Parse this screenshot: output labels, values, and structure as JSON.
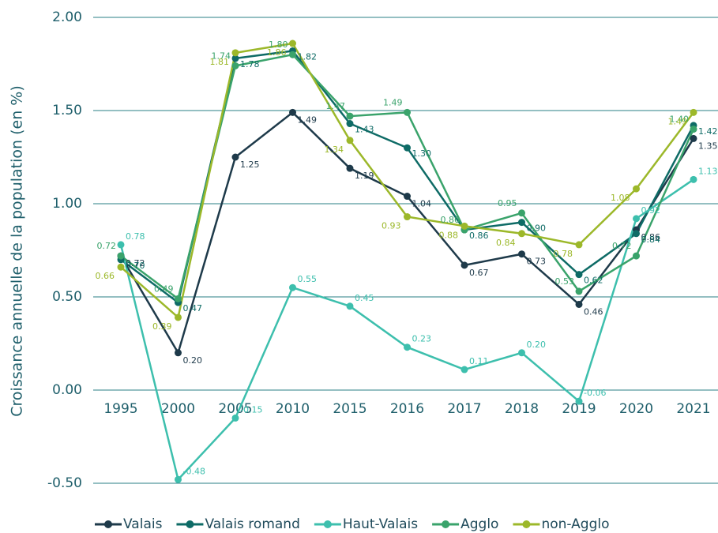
{
  "chart_data": {
    "type": "line",
    "y_label": "Croissance annuelle de la population (en %)",
    "categories": [
      "1995",
      "2000",
      "2005",
      "2010",
      "2015",
      "2016",
      "2017",
      "2018",
      "2019",
      "2020",
      "2021"
    ],
    "ylim": [
      -0.5,
      2.0
    ],
    "yticks": [
      {
        "value": 2.0,
        "label": "2.00"
      },
      {
        "value": 1.5,
        "label": "1.50"
      },
      {
        "value": 1.0,
        "label": "1.00"
      },
      {
        "value": 0.5,
        "label": "0.50"
      },
      {
        "value": 0.0,
        "label": "0.00"
      },
      {
        "value": -0.5,
        "label": "-0.50"
      }
    ],
    "grid": true,
    "legend": "bottom",
    "series": [
      {
        "name": "Valais",
        "color": "#1e3a4a",
        "values": [
          0.72,
          0.2,
          1.25,
          1.49,
          1.19,
          1.04,
          0.67,
          0.73,
          0.46,
          0.86,
          1.35
        ],
        "value_labels": [
          "0.72",
          "0.20",
          "1.25",
          "1.49",
          "1.19",
          "1.04",
          "0.67",
          "0.73",
          "0.46",
          "0.86",
          "1.35"
        ]
      },
      {
        "name": "Valais romand",
        "color": "#0e6b66",
        "values": [
          0.7,
          0.47,
          1.78,
          1.82,
          1.43,
          1.3,
          0.86,
          0.9,
          0.62,
          0.84,
          1.42
        ],
        "value_labels": [
          "0.70",
          "0.47",
          "1.78",
          "1.82",
          "1.43",
          "1.30",
          "0.86",
          "0.90",
          "0.62",
          "0.84",
          "1.42"
        ]
      },
      {
        "name": "Haut-Valais",
        "color": "#3dbfad",
        "values": [
          0.78,
          -0.48,
          -0.15,
          0.55,
          0.45,
          0.23,
          0.11,
          0.2,
          -0.06,
          0.92,
          1.13
        ],
        "value_labels": [
          "0.78",
          "-0.48",
          "-0.15",
          "0.55",
          "0.45",
          "0.23",
          "0.11",
          "0.20",
          "-0.06",
          "0.92",
          "1.13"
        ]
      },
      {
        "name": "Agglo",
        "color": "#3aa36b",
        "values": [
          0.72,
          0.49,
          1.74,
          1.8,
          1.47,
          1.49,
          0.86,
          0.95,
          0.53,
          0.72,
          1.4
        ],
        "value_labels": [
          "0.72",
          "0.49",
          "1.74",
          "1.80",
          "1.47",
          "1.49",
          "0.86",
          "0.95",
          "0.53",
          "0.72",
          "1.40"
        ]
      },
      {
        "name": "non-Agglo",
        "color": "#9cb82a",
        "values": [
          0.66,
          0.39,
          1.81,
          1.86,
          1.34,
          0.93,
          0.88,
          0.84,
          0.78,
          1.08,
          1.49
        ],
        "value_labels": [
          "0.66",
          "0.39",
          "1.81",
          "1.86",
          "1.34",
          "0.93",
          "0.88",
          "0.84",
          "0.78",
          "1.08",
          "1.49"
        ]
      }
    ]
  }
}
